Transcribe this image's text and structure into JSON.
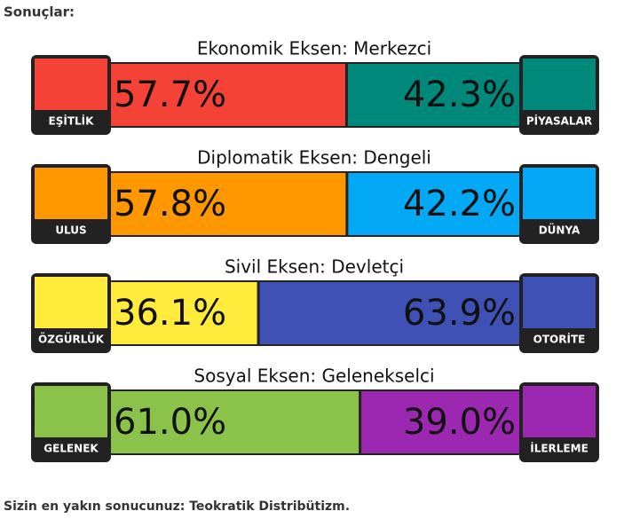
{
  "header": {
    "title": "Sonuçlar:"
  },
  "axes": [
    {
      "title": "Ekonomik Eksen: Merkezci",
      "left": {
        "label": "EŞİTLİK",
        "value": 57.7,
        "value_label": "57.7%",
        "color": "#f44336"
      },
      "right": {
        "label": "PİYASALAR",
        "value": 42.3,
        "value_label": "42.3%",
        "color": "#00897b"
      }
    },
    {
      "title": "Diplomatik Eksen: Dengeli",
      "left": {
        "label": "ULUS",
        "value": 57.8,
        "value_label": "57.8%",
        "color": "#ff9800"
      },
      "right": {
        "label": "DÜNYA",
        "value": 42.2,
        "value_label": "42.2%",
        "color": "#03a9f4"
      }
    },
    {
      "title": "Sivil Eksen: Devletçi",
      "left": {
        "label": "ÖZGÜRLÜK",
        "value": 36.1,
        "value_label": "36.1%",
        "color": "#ffeb3b"
      },
      "right": {
        "label": "OTORİTE",
        "value": 63.9,
        "value_label": "63.9%",
        "color": "#3f51b5"
      }
    },
    {
      "title": "Sosyal Eksen: Gelenekselci",
      "left": {
        "label": "GELENEK",
        "value": 61.0,
        "value_label": "61.0%",
        "color": "#8bc34a"
      },
      "right": {
        "label": "İLERLEME",
        "value": 39.0,
        "value_label": "39.0%",
        "color": "#9c27b0"
      }
    }
  ],
  "footer": {
    "text": "Sizin en yakın sonucunuz: Teokratik Distribütizm."
  }
}
